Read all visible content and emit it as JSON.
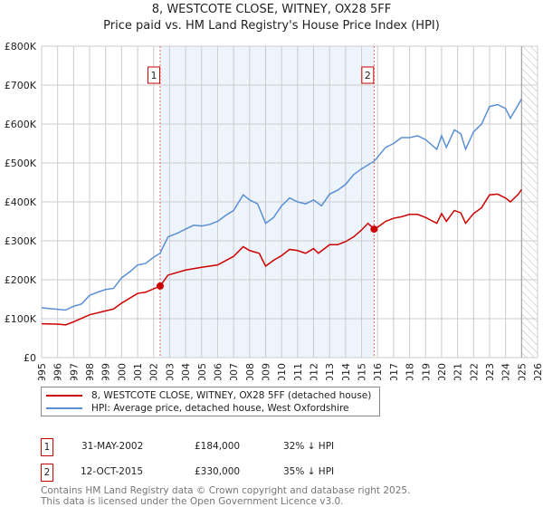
{
  "chart_data": {
    "type": "line",
    "title": "8, WESTCOTE CLOSE, WITNEY, OX28 5FF",
    "subtitle": "Price paid vs. HM Land Registry's House Price Index (HPI)",
    "xlim": [
      1995,
      2026
    ],
    "ylim": [
      0,
      800000
    ],
    "y_ticks": [
      {
        "v": 0,
        "label": "£0"
      },
      {
        "v": 100000,
        "label": "£100K"
      },
      {
        "v": 200000,
        "label": "£200K"
      },
      {
        "v": 300000,
        "label": "£300K"
      },
      {
        "v": 400000,
        "label": "£400K"
      },
      {
        "v": 500000,
        "label": "£500K"
      },
      {
        "v": 600000,
        "label": "£600K"
      },
      {
        "v": 700000,
        "label": "£700K"
      },
      {
        "v": 800000,
        "label": "£800K"
      }
    ],
    "x_ticks": [
      "1995",
      "1996",
      "1997",
      "1998",
      "1999",
      "2000",
      "2001",
      "2002",
      "2003",
      "2004",
      "2005",
      "2006",
      "2007",
      "2008",
      "2009",
      "2010",
      "2011",
      "2012",
      "2013",
      "2014",
      "2015",
      "2016",
      "2017",
      "2018",
      "2019",
      "2020",
      "2021",
      "2022",
      "2023",
      "2024",
      "2025",
      "2026"
    ],
    "series": [
      {
        "name": "8, WESTCOTE CLOSE, WITNEY, OX28 5FF (detached house)",
        "color": "#cc0000",
        "x": [
          1995,
          1996,
          1996.5,
          1997,
          1998,
          1999,
          1999.5,
          2000,
          2001,
          2001.5,
          2002.41,
          2002.9,
          2004,
          2005,
          2006,
          2007,
          2007.6,
          2008,
          2008.6,
          2009,
          2009.5,
          2010,
          2010.5,
          2011,
          2011.5,
          2012,
          2012.3,
          2013,
          2013.5,
          2014,
          2014.5,
          2015,
          2015.4,
          2015.78,
          2016,
          2016.5,
          2017,
          2017.5,
          2018,
          2018.5,
          2019,
          2019.7,
          2020,
          2020.3,
          2020.8,
          2021.2,
          2021.5,
          2022,
          2022.5,
          2023,
          2023.5,
          2024,
          2024.3,
          2024.8,
          2025
        ],
        "y": [
          87,
          86,
          84,
          92,
          110,
          120,
          125,
          140,
          165,
          168,
          184,
          212,
          225,
          232,
          238,
          260,
          285,
          275,
          268,
          235,
          250,
          262,
          278,
          275,
          268,
          280,
          268,
          290,
          290,
          298,
          310,
          328,
          345,
          330,
          335,
          350,
          358,
          362,
          368,
          368,
          360,
          345,
          370,
          350,
          378,
          372,
          345,
          370,
          385,
          418,
          420,
          410,
          400,
          420,
          432
        ]
      },
      {
        "name": "HPI: Average price, detached house, West Oxfordshire",
        "color": "#5b8fd4",
        "x": [
          1995,
          1996,
          1996.5,
          1997,
          1997.5,
          1998,
          1998.5,
          1999,
          1999.5,
          2000,
          2000.5,
          2001,
          2001.5,
          2002,
          2002.4,
          2002.9,
          2003.5,
          2004,
          2004.5,
          2005,
          2005.5,
          2006,
          2006.5,
          2007,
          2007.6,
          2008,
          2008.5,
          2009,
          2009.5,
          2010,
          2010.5,
          2011,
          2011.5,
          2012,
          2012.5,
          2013,
          2013.5,
          2014,
          2014.5,
          2015,
          2015.8,
          2016,
          2016.5,
          2017,
          2017.5,
          2018,
          2018.5,
          2019,
          2019.7,
          2020,
          2020.3,
          2020.8,
          2021.2,
          2021.5,
          2022,
          2022.5,
          2023,
          2023.5,
          2024,
          2024.3,
          2024.8,
          2025
        ],
        "y": [
          128,
          124,
          122,
          132,
          138,
          160,
          168,
          175,
          178,
          205,
          220,
          238,
          242,
          258,
          268,
          310,
          320,
          330,
          340,
          338,
          342,
          350,
          365,
          378,
          418,
          405,
          395,
          345,
          360,
          390,
          410,
          400,
          395,
          405,
          390,
          420,
          430,
          445,
          470,
          485,
          505,
          515,
          540,
          550,
          565,
          565,
          570,
          560,
          535,
          570,
          540,
          585,
          575,
          535,
          580,
          600,
          645,
          650,
          640,
          615,
          650,
          665
        ]
      }
    ],
    "y_units": "thousands GBP",
    "sales": [
      {
        "num": "1",
        "date": "31-MAY-2002",
        "x": 2002.41,
        "price": "£184,000",
        "value": 184,
        "hpi": "32% ↓ HPI"
      },
      {
        "num": "2",
        "date": "12-OCT-2015",
        "x": 2015.78,
        "price": "£330,000",
        "value": 330,
        "hpi": "35% ↓ HPI"
      }
    ],
    "forecast_start": 2025,
    "legend_position": "bottom"
  },
  "footer": {
    "line1": "Contains HM Land Registry data © Crown copyright and database right 2025.",
    "line2": "This data is licensed under the Open Government Licence v3.0."
  }
}
